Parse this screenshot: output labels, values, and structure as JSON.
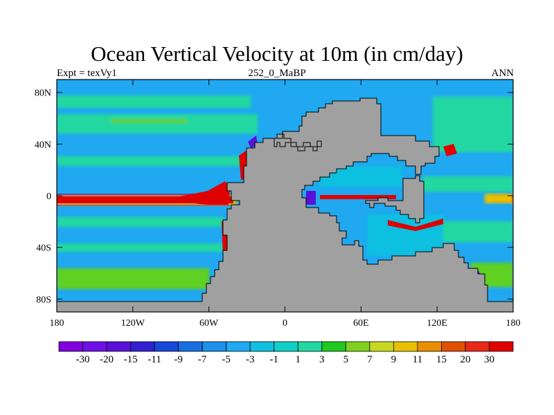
{
  "chart_data": {
    "type": "heatmap",
    "title": "Ocean Vertical Velocity at 10m (in cm/day)",
    "subtitle_left": "Expt = texVy1",
    "subtitle_center": "252_0_MaBP",
    "subtitle_right": "ANN",
    "x_ticks": [
      {
        "value": -180,
        "label": "180"
      },
      {
        "value": -120,
        "label": "120W"
      },
      {
        "value": -60,
        "label": "60W"
      },
      {
        "value": 0,
        "label": "0"
      },
      {
        "value": 60,
        "label": "60E"
      },
      {
        "value": 120,
        "label": "120E"
      },
      {
        "value": 180,
        "label": "180"
      }
    ],
    "y_ticks": [
      {
        "value": 80,
        "label": "80N"
      },
      {
        "value": 40,
        "label": "40N"
      },
      {
        "value": 0,
        "label": "0"
      },
      {
        "value": -40,
        "label": "40S"
      },
      {
        "value": -80,
        "label": "80S"
      }
    ],
    "xlim": [
      -180,
      180
    ],
    "ylim": [
      -90,
      90
    ],
    "colorbar": {
      "levels": [
        "-30",
        "-20",
        "-15",
        "-11",
        "-9",
        "-7",
        "-5",
        "-3",
        "-1",
        "1",
        "3",
        "5",
        "7",
        "9",
        "11",
        "15",
        "20",
        "30"
      ],
      "colors": [
        "#8000e0",
        "#7010e8",
        "#5a10d8",
        "#3020d0",
        "#1848d8",
        "#1870e0",
        "#1c90e8",
        "#20a8f0",
        "#10c0e0",
        "#10d0c8",
        "#20d8a0",
        "#20c820",
        "#80d020",
        "#c8d820",
        "#e8c000",
        "#e89000",
        "#e05000",
        "#e82818",
        "#e00000"
      ]
    },
    "fill_colors": {
      "ocean": "#20a8f0",
      "land": "#a0a0a0",
      "subtropical_band": "#20d8a0",
      "high_lat_band": "#60d020",
      "equator_upwelling": "#e00000",
      "equator_edge": "#e8c000",
      "downwelling": "#5a10d8",
      "coast_mix": "#10c0e0"
    }
  }
}
